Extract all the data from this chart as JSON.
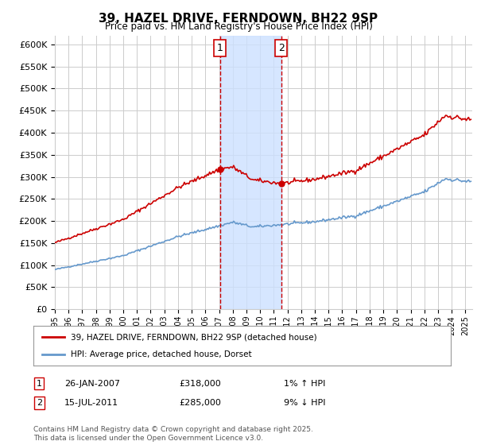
{
  "title": "39, HAZEL DRIVE, FERNDOWN, BH22 9SP",
  "subtitle": "Price paid vs. HM Land Registry's House Price Index (HPI)",
  "ylim": [
    0,
    620000
  ],
  "yticks": [
    0,
    50000,
    100000,
    150000,
    200000,
    250000,
    300000,
    350000,
    400000,
    450000,
    500000,
    550000,
    600000
  ],
  "xlim_start": 1995.0,
  "xlim_end": 2025.5,
  "sale1_x": 2007.07,
  "sale1_y": 318000,
  "sale1_label": "1",
  "sale2_x": 2011.54,
  "sale2_y": 285000,
  "sale2_label": "2",
  "shade_color": "#cce0ff",
  "red_line_color": "#cc0000",
  "blue_line_color": "#6699cc",
  "grid_color": "#cccccc",
  "legend1_text": "39, HAZEL DRIVE, FERNDOWN, BH22 9SP (detached house)",
  "legend2_text": "HPI: Average price, detached house, Dorset",
  "note1_label": "1",
  "note1_date": "26-JAN-2007",
  "note1_price": "£318,000",
  "note1_hpi": "1% ↑ HPI",
  "note2_label": "2",
  "note2_date": "15-JUL-2011",
  "note2_price": "£285,000",
  "note2_hpi": "9% ↓ HPI",
  "footer": "Contains HM Land Registry data © Crown copyright and database right 2025.\nThis data is licensed under the Open Government Licence v3.0."
}
